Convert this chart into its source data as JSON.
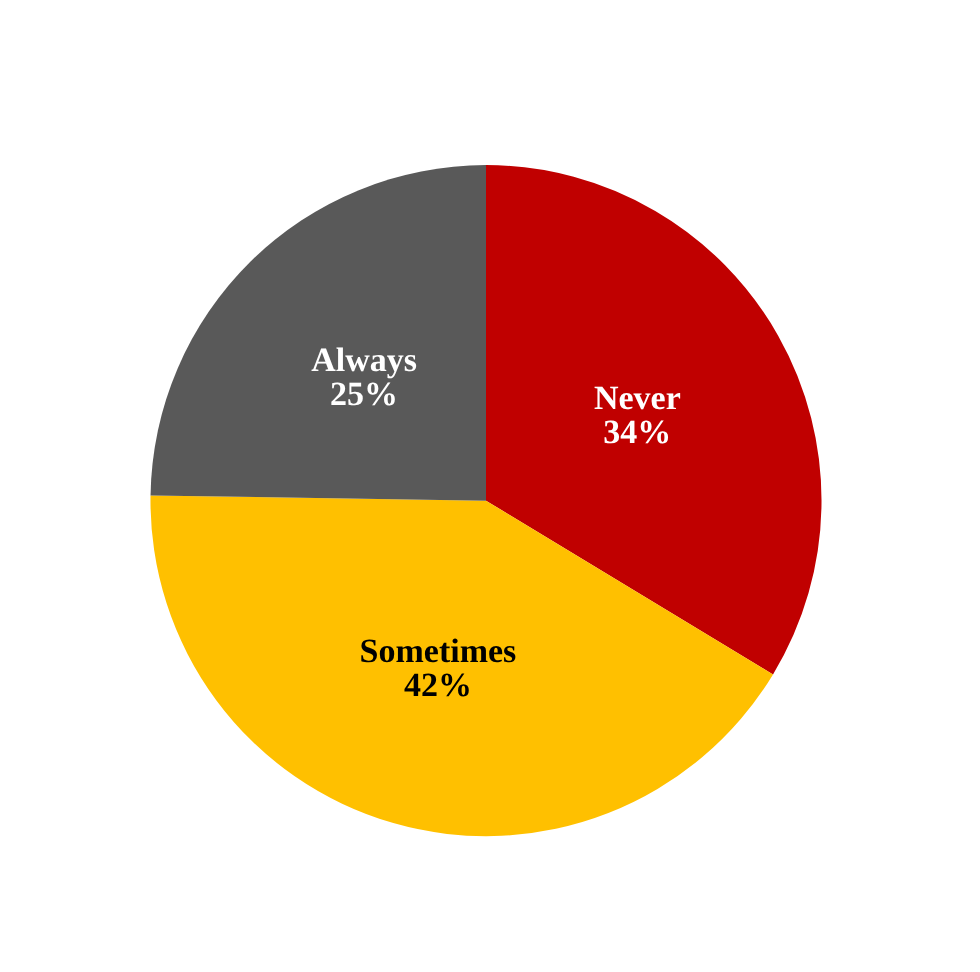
{
  "chart_data": {
    "type": "pie",
    "categories": [
      "Never",
      "Sometimes",
      "Always"
    ],
    "values": [
      34,
      42,
      25
    ],
    "value_labels": [
      "34%",
      "42%",
      "25%"
    ],
    "colors": [
      "#c00000",
      "#ffc000",
      "#595959"
    ]
  }
}
